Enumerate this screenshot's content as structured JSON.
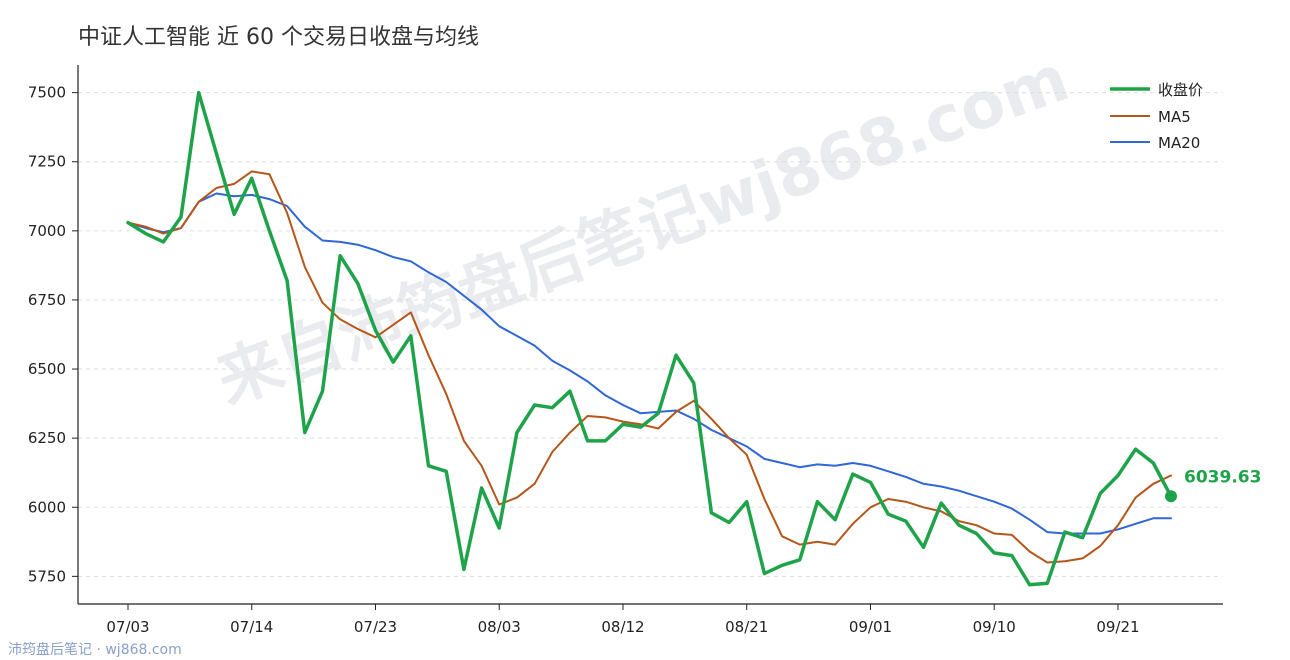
{
  "title": "中证人工智能 近 60 个交易日收盘与均线",
  "watermark": "来自沛筠盘后笔记wj868.com",
  "footer": "沛筠盘后笔记 · wj868.com",
  "colors": {
    "close": "#1fa34a",
    "ma5": "#b5561a",
    "ma20": "#2f67d8",
    "grid": "#dddddd",
    "axis": "#222222"
  },
  "chart_data": {
    "type": "line",
    "title": "中证人工智能 近 60 个交易日收盘与均线",
    "xlabel": "",
    "ylabel": "",
    "ylim": [
      5650,
      7600
    ],
    "yticks": [
      5750,
      6000,
      6250,
      6500,
      6750,
      7000,
      7250,
      7500
    ],
    "xtick_labels": [
      "07/03",
      "07/14",
      "07/23",
      "08/03",
      "08/12",
      "08/21",
      "09/01",
      "09/10",
      "09/21"
    ],
    "xtick_indices": [
      0,
      7,
      14,
      21,
      28,
      35,
      42,
      49,
      56
    ],
    "grid": "horizontal-dashed",
    "legend": "top-right",
    "n_points": 60,
    "last_close_label": "6039.63",
    "series": [
      {
        "name": "收盘价",
        "key": "close",
        "values": [
          7030,
          6990,
          6960,
          7050,
          7500,
          7280,
          7060,
          7190,
          7000,
          6820,
          6270,
          6420,
          6910,
          6810,
          6640,
          6525,
          6620,
          6150,
          6130,
          5775,
          6070,
          5925,
          6270,
          6370,
          6360,
          6420,
          6240,
          6240,
          6300,
          6290,
          6340,
          6550,
          6450,
          5980,
          5945,
          6020,
          5760,
          5790,
          5810,
          6020,
          5955,
          6120,
          6090,
          5975,
          5950,
          5855,
          6015,
          5935,
          5905,
          5835,
          5825,
          5720,
          5725,
          5910,
          5890,
          6050,
          6115,
          6210,
          6160,
          6039.63
        ]
      },
      {
        "name": "MA5",
        "key": "ma5",
        "values": [
          7030,
          7015,
          6990,
          7010,
          7105,
          7155,
          7170,
          7215,
          7205,
          7065,
          6870,
          6740,
          6680,
          6645,
          6615,
          6660,
          6705,
          6550,
          6410,
          6240,
          6150,
          6010,
          6035,
          6085,
          6200,
          6270,
          6330,
          6325,
          6310,
          6300,
          6285,
          6345,
          6385,
          6320,
          6250,
          6190,
          6030,
          5895,
          5865,
          5875,
          5865,
          5940,
          6000,
          6030,
          6020,
          6000,
          5985,
          5950,
          5935,
          5905,
          5900,
          5840,
          5800,
          5805,
          5815,
          5860,
          5935,
          6035,
          6085,
          6115
        ]
      },
      {
        "name": "MA20",
        "key": "ma20",
        "values": [
          7030,
          7010,
          6995,
          7010,
          7105,
          7135,
          7125,
          7130,
          7115,
          7090,
          7015,
          6965,
          6960,
          6950,
          6930,
          6905,
          6890,
          6850,
          6815,
          6765,
          6715,
          6655,
          6620,
          6585,
          6530,
          6495,
          6455,
          6405,
          6370,
          6340,
          6345,
          6350,
          6320,
          6280,
          6250,
          6220,
          6175,
          6160,
          6145,
          6155,
          6150,
          6160,
          6150,
          6130,
          6110,
          6085,
          6075,
          6060,
          6040,
          6020,
          5995,
          5955,
          5910,
          5905,
          5905,
          5905,
          5920,
          5940,
          5960,
          5960
        ]
      }
    ]
  }
}
